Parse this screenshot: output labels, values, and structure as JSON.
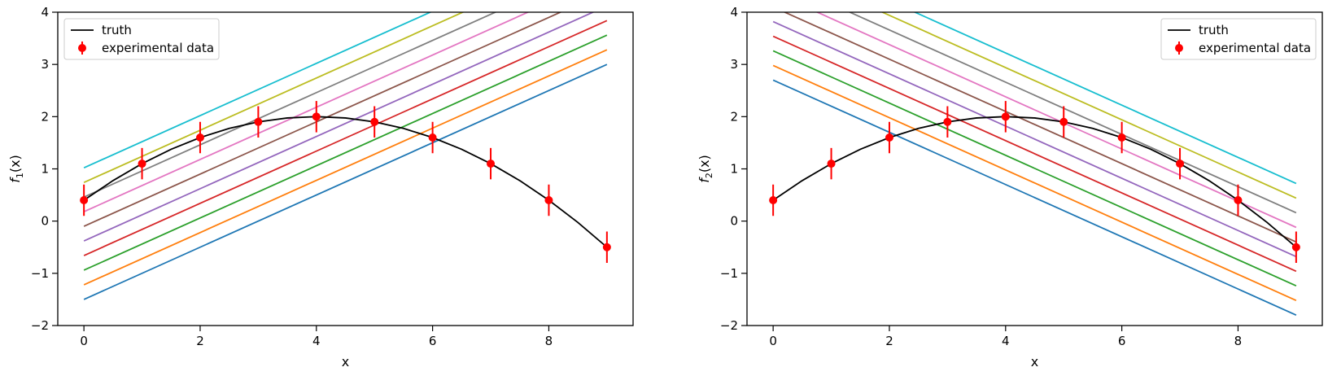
{
  "chart_data": [
    {
      "type": "line",
      "ylabel_var": "f",
      "ylabel_sub": "1",
      "ylabel_arg": "(x)",
      "xlabel": "x",
      "xlim": [
        -0.45,
        9.45
      ],
      "ylim": [
        -2,
        4
      ],
      "xticks": [
        0,
        2,
        4,
        6,
        8
      ],
      "yticks": [
        -2,
        -1,
        0,
        1,
        2,
        3,
        4
      ],
      "legend": {
        "placement": "upper-left",
        "truth": "truth",
        "data": "experimental data"
      },
      "truth": {
        "x": [
          0,
          0.5,
          1,
          1.5,
          2,
          2.5,
          3,
          3.5,
          4,
          4.5,
          5,
          5.5,
          6,
          6.5,
          7,
          7.5,
          8,
          8.5,
          9
        ],
        "y": [
          0.4,
          0.775,
          1.1,
          1.375,
          1.6,
          1.775,
          1.9,
          1.975,
          2.0,
          1.975,
          1.9,
          1.775,
          1.6,
          1.375,
          1.1,
          0.775,
          0.4,
          -0.025,
          -0.5
        ],
        "color": "#000000"
      },
      "experimental_data": {
        "x": [
          0,
          1,
          2,
          3,
          4,
          5,
          6,
          7,
          8,
          9
        ],
        "y": [
          0.4,
          1.1,
          1.6,
          1.9,
          2.0,
          1.9,
          1.6,
          1.1,
          0.4,
          -0.5
        ],
        "yerr": [
          0.3,
          0.3,
          0.3,
          0.3,
          0.3,
          0.3,
          0.3,
          0.3,
          0.3,
          0.3
        ],
        "color": "#ff0000"
      },
      "lines": [
        {
          "x": [
            0,
            9
          ],
          "y": [
            -1.5,
            3.0
          ],
          "color": "#1f77b4"
        },
        {
          "x": [
            0,
            9
          ],
          "y": [
            -1.22,
            3.28
          ],
          "color": "#ff7f0e"
        },
        {
          "x": [
            0,
            9
          ],
          "y": [
            -0.94,
            3.56
          ],
          "color": "#2ca02c"
        },
        {
          "x": [
            0,
            9
          ],
          "y": [
            -0.66,
            3.84
          ],
          "color": "#d62728"
        },
        {
          "x": [
            0,
            9
          ],
          "y": [
            -0.38,
            4.12
          ],
          "color": "#9467bd"
        },
        {
          "x": [
            0,
            9
          ],
          "y": [
            -0.1,
            4.4
          ],
          "color": "#8c564b"
        },
        {
          "x": [
            0,
            9
          ],
          "y": [
            0.18,
            4.68
          ],
          "color": "#e377c2"
        },
        {
          "x": [
            0,
            9
          ],
          "y": [
            0.46,
            4.96
          ],
          "color": "#7f7f7f"
        },
        {
          "x": [
            0,
            9
          ],
          "y": [
            0.74,
            5.24
          ],
          "color": "#bcbd22"
        },
        {
          "x": [
            0,
            9
          ],
          "y": [
            1.02,
            5.52
          ],
          "color": "#17becf"
        }
      ]
    },
    {
      "type": "line",
      "ylabel_var": "f",
      "ylabel_sub": "2",
      "ylabel_arg": "(x)",
      "xlabel": "x",
      "xlim": [
        -0.45,
        9.45
      ],
      "ylim": [
        -2,
        4
      ],
      "xticks": [
        0,
        2,
        4,
        6,
        8
      ],
      "yticks": [
        -2,
        -1,
        0,
        1,
        2,
        3,
        4
      ],
      "legend": {
        "placement": "upper-right",
        "truth": "truth",
        "data": "experimental data"
      },
      "truth": {
        "x": [
          0,
          0.5,
          1,
          1.5,
          2,
          2.5,
          3,
          3.5,
          4,
          4.5,
          5,
          5.5,
          6,
          6.5,
          7,
          7.5,
          8,
          8.5,
          9
        ],
        "y": [
          0.4,
          0.775,
          1.1,
          1.375,
          1.6,
          1.775,
          1.9,
          1.975,
          2.0,
          1.975,
          1.9,
          1.775,
          1.6,
          1.375,
          1.1,
          0.775,
          0.4,
          -0.025,
          -0.5
        ],
        "color": "#000000"
      },
      "experimental_data": {
        "x": [
          0,
          1,
          2,
          3,
          4,
          5,
          6,
          7,
          8,
          9
        ],
        "y": [
          0.4,
          1.1,
          1.6,
          1.9,
          2.0,
          1.9,
          1.6,
          1.1,
          0.4,
          -0.5
        ],
        "yerr": [
          0.3,
          0.3,
          0.3,
          0.3,
          0.3,
          0.3,
          0.3,
          0.3,
          0.3,
          0.3
        ],
        "color": "#ff0000"
      },
      "lines": [
        {
          "x": [
            0,
            9
          ],
          "y": [
            2.7,
            -1.8
          ],
          "color": "#1f77b4"
        },
        {
          "x": [
            0,
            9
          ],
          "y": [
            2.98,
            -1.52
          ],
          "color": "#ff7f0e"
        },
        {
          "x": [
            0,
            9
          ],
          "y": [
            3.26,
            -1.24
          ],
          "color": "#2ca02c"
        },
        {
          "x": [
            0,
            9
          ],
          "y": [
            3.54,
            -0.96
          ],
          "color": "#d62728"
        },
        {
          "x": [
            0,
            9
          ],
          "y": [
            3.82,
            -0.68
          ],
          "color": "#9467bd"
        },
        {
          "x": [
            0,
            9
          ],
          "y": [
            4.1,
            -0.4
          ],
          "color": "#8c564b"
        },
        {
          "x": [
            0,
            9
          ],
          "y": [
            4.38,
            -0.12
          ],
          "color": "#e377c2"
        },
        {
          "x": [
            0,
            9
          ],
          "y": [
            4.66,
            0.16
          ],
          "color": "#7f7f7f"
        },
        {
          "x": [
            0,
            9
          ],
          "y": [
            4.94,
            0.44
          ],
          "color": "#bcbd22"
        },
        {
          "x": [
            0,
            9
          ],
          "y": [
            5.22,
            0.72
          ],
          "color": "#17becf"
        }
      ]
    }
  ]
}
